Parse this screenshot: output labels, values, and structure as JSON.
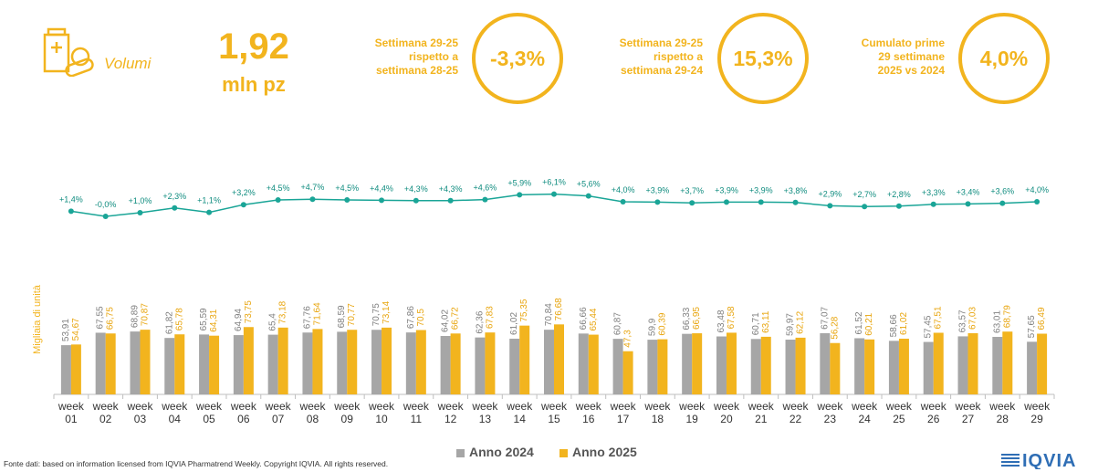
{
  "kpi": {
    "label": "Volumi",
    "value": "1,92",
    "unit": "mln pz",
    "blocks": [
      {
        "lines": [
          "Settimana 29-25",
          "rispetto a",
          "settimana 28-25"
        ],
        "value": "-3,3%"
      },
      {
        "lines": [
          "Settimana 29-25",
          "rispetto a",
          "settimana 29-24"
        ],
        "value": "15,3%"
      },
      {
        "lines": [
          "Cumulato prime",
          "29 settimane",
          "2025 vs 2024"
        ],
        "value": "4,0%"
      }
    ]
  },
  "colors": {
    "accent": "#F2B41E",
    "series_2024": "#A6A6A6",
    "series_2025": "#F2B41E",
    "growth_line": "#1AA597"
  },
  "icons": {
    "kpi_icon": "pill-box-icon"
  },
  "footer": "Fonte dati: based on information licensed from IQVIA Pharmatrend Weekly. Copyright IQVIA. All rights reserved.",
  "logo_text": "IQVIA",
  "chart_data": {
    "type": "bar",
    "ylabel": "Migliaia di unità",
    "categories": [
      "week 01",
      "week 02",
      "week 03",
      "week 04",
      "week 05",
      "week 06",
      "week 07",
      "week 08",
      "week 09",
      "week 10",
      "week 11",
      "week 12",
      "week 13",
      "week 14",
      "week 15",
      "week 16",
      "week 17",
      "week 18",
      "week 19",
      "week 20",
      "week 21",
      "week 22",
      "week 23",
      "week 24",
      "week 25",
      "week 26",
      "week 27",
      "week 28",
      "week 29"
    ],
    "series": [
      {
        "name": "Anno 2024",
        "values": [
          53.91,
          67.55,
          68.89,
          61.82,
          65.59,
          64.94,
          65.4,
          67.76,
          68.59,
          70.75,
          67.86,
          64.02,
          62.36,
          61.02,
          70.84,
          66.66,
          60.87,
          59.9,
          66.33,
          63.48,
          60.71,
          59.97,
          67.07,
          61.52,
          58.66,
          57.45,
          63.57,
          63.01,
          57.65
        ]
      },
      {
        "name": "Anno 2025",
        "values": [
          54.67,
          66.75,
          70.87,
          65.78,
          64.31,
          73.75,
          73.18,
          71.64,
          70.77,
          73.14,
          70.5,
          66.72,
          67.83,
          75.35,
          76.68,
          65.44,
          47.3,
          60.39,
          66.95,
          67.58,
          63.11,
          62.12,
          56.28,
          60.21,
          61.02,
          67.51,
          67.03,
          68.79,
          66.49
        ]
      }
    ],
    "bar_labels_2024": [
      "53,91",
      "67,55",
      "68,89",
      "61,82",
      "65,59",
      "64,94",
      "65,4",
      "67,76",
      "68,59",
      "70,75",
      "67,86",
      "64,02",
      "62,36",
      "61,02",
      "70,84",
      "66,66",
      "60,87",
      "59,9",
      "66,33",
      "63,48",
      "60,71",
      "59,97",
      "67,07",
      "61,52",
      "58,66",
      "57,45",
      "63,57",
      "63,01",
      "57,65"
    ],
    "bar_labels_2025": [
      "54,67",
      "66,75",
      "70,87",
      "65,78",
      "64,31",
      "73,75",
      "73,18",
      "71,64",
      "70,77",
      "73,14",
      "70,5",
      "66,72",
      "67,83",
      "75,35",
      "76,68",
      "65,44",
      "47,3",
      "60,39",
      "66,95",
      "67,58",
      "63,11",
      "62,12",
      "56,28",
      "60,21",
      "61,02",
      "67,51",
      "67,03",
      "68,79",
      "66,49"
    ],
    "growth": {
      "values": [
        1.4,
        0.0,
        1.0,
        2.3,
        1.1,
        3.2,
        4.5,
        4.7,
        4.5,
        4.4,
        4.3,
        4.3,
        4.6,
        5.9,
        6.1,
        5.6,
        4.0,
        3.9,
        3.7,
        3.9,
        3.9,
        3.8,
        2.9,
        2.7,
        2.8,
        3.3,
        3.4,
        3.6,
        4.0
      ],
      "labels": [
        "+1,4%",
        "-0,0%",
        "+1,0%",
        "+2,3%",
        "+1,1%",
        "+3,2%",
        "+4,5%",
        "+4,7%",
        "+4,5%",
        "+4,4%",
        "+4,3%",
        "+4,3%",
        "+4,6%",
        "+5,9%",
        "+6,1%",
        "+5,6%",
        "+4,0%",
        "+3,9%",
        "+3,7%",
        "+3,9%",
        "+3,9%",
        "+3,8%",
        "+2,9%",
        "+2,7%",
        "+2,8%",
        "+3,3%",
        "+3,4%",
        "+3,6%",
        "+4,0%"
      ]
    },
    "legend": {
      "position": "bottom"
    },
    "grid": false
  }
}
